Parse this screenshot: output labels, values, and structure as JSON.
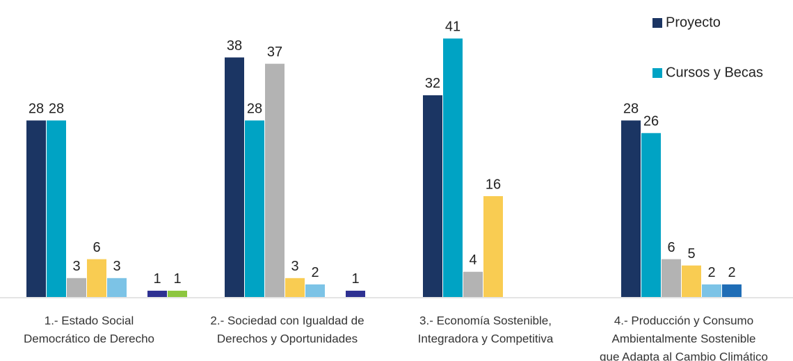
{
  "chart_data": {
    "type": "bar",
    "categories": [
      [
        "1.- Estado Social",
        "Democrático de Derecho"
      ],
      [
        "2.- Sociedad con Igualdad de",
        "Derechos y Oportunidades"
      ],
      [
        "3.- Economía Sostenible,",
        "Integradora y Competitiva"
      ],
      [
        "4.- Producción y Consumo",
        "Ambientalmente Sostenible",
        "que Adapta al Cambio Climático"
      ]
    ],
    "series": [
      {
        "name": "Proyecto",
        "color": "#1b3563",
        "values": [
          28,
          38,
          32,
          28
        ]
      },
      {
        "name": "Cursos y Becas",
        "color": "#00a3c4",
        "values": [
          28,
          28,
          41,
          26
        ]
      },
      {
        "color": "#b3b3b3",
        "values": [
          3,
          37,
          4,
          6
        ]
      },
      {
        "color": "#f9cc52",
        "values": [
          6,
          3,
          16,
          5
        ]
      },
      {
        "color": "#7cc3e6",
        "values": [
          3,
          2,
          null,
          2
        ]
      },
      {
        "color": "#1f6db6",
        "values": [
          null,
          null,
          null,
          2
        ]
      },
      {
        "color": "#2e3192",
        "values": [
          1,
          1,
          null,
          null
        ]
      },
      {
        "color": "#8dc63f",
        "values": [
          1,
          null,
          null,
          null
        ]
      }
    ],
    "ylim": [
      0,
      47
    ]
  }
}
